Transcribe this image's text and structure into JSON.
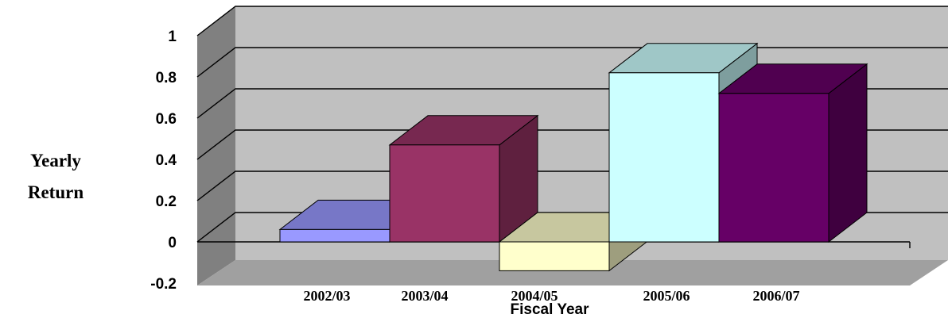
{
  "chart_data": {
    "type": "bar",
    "style": "3d",
    "categories": [
      "2002/03",
      "2003/04",
      "2004/05",
      "2005/06",
      "2006/07"
    ],
    "values": [
      0.06,
      0.47,
      -0.14,
      0.82,
      0.72
    ],
    "bar_colors": [
      "#9999FF",
      "#993366",
      "#FFFFCC",
      "#CCFFFF",
      "#660066"
    ],
    "xlabel": "Fiscal Year",
    "ylabel_lines": [
      "Yearly",
      "Return"
    ],
    "ylim": [
      -0.2,
      1
    ],
    "yticks": [
      "-0.2",
      "0",
      "0.2",
      "0.4",
      "0.6",
      "0.8",
      "1"
    ],
    "ytick_values": [
      -0.2,
      0,
      0.2,
      0.4,
      0.6,
      0.8,
      1
    ],
    "grid": true,
    "background_color": "#C0C0C0",
    "legend": "none"
  }
}
